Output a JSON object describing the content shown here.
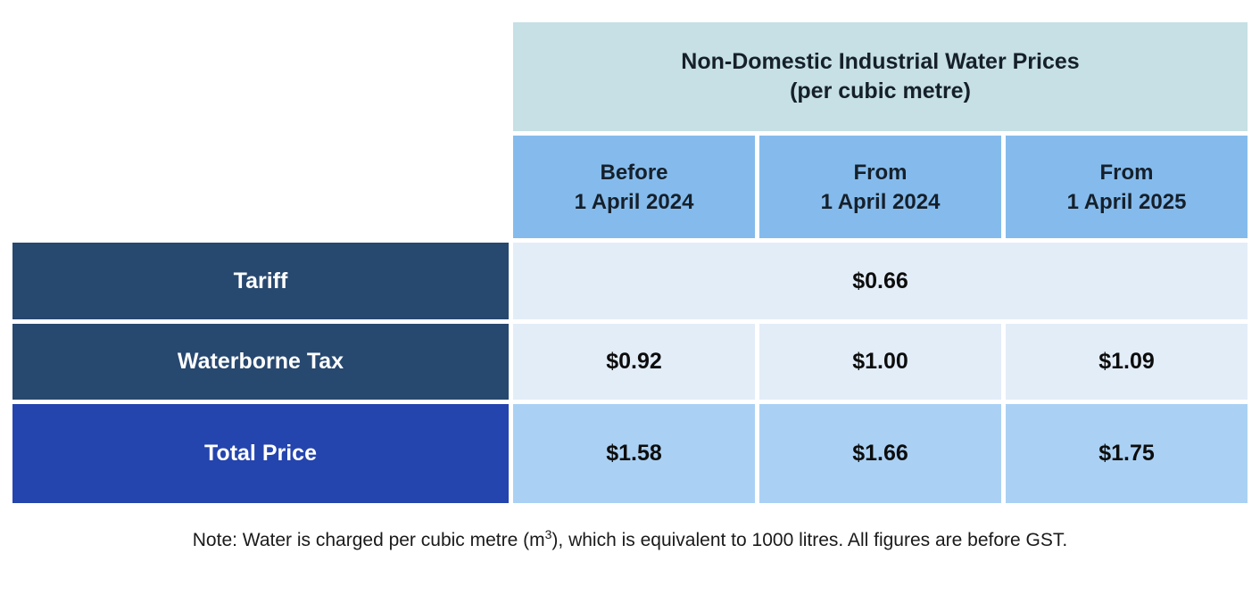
{
  "colors": {
    "header_teal": "#C6E0E5",
    "column_header_blue": "#85BBEC",
    "row_header_navy": "#27486F",
    "row_header_royal_blue": "#2444AE",
    "cell_light_blue": "#E3EDF8",
    "cell_medium_blue": "#AAD1F4",
    "text_dark": "#15202B",
    "text_white": "#FFFFFF",
    "background": "#FFFFFF"
  },
  "table": {
    "title_line1": "Non-Domestic Industrial Water Prices",
    "title_line2": "(per cubic metre)",
    "columns": [
      {
        "line1": "Before",
        "line2": "1 April 2024"
      },
      {
        "line1": "From",
        "line2": "1 April 2024"
      },
      {
        "line1": "From",
        "line2": "1 April 2025"
      }
    ],
    "rows": [
      {
        "label": "Tariff",
        "merged_value": "$0.66"
      },
      {
        "label": "Waterborne Tax",
        "values": [
          "$0.92",
          "$1.00",
          "$1.09"
        ]
      },
      {
        "label": "Total Price",
        "values": [
          "$1.58",
          "$1.66",
          "$1.75"
        ]
      }
    ]
  },
  "note": {
    "prefix": "Note: Water is charged per cubic metre (m",
    "superscript": "3",
    "suffix": "), which is equivalent to 1000 litres. All figures are before GST."
  },
  "chart_data": {
    "type": "table",
    "title": "Non-Domestic Industrial Water Prices (per cubic metre)",
    "columns": [
      "Before 1 April 2024",
      "From 1 April 2024",
      "From 1 April 2025"
    ],
    "rows": [
      {
        "label": "Tariff",
        "values": [
          "$0.66",
          "$0.66",
          "$0.66"
        ],
        "merged_across_columns": true
      },
      {
        "label": "Waterborne Tax",
        "values": [
          "$0.92",
          "$1.00",
          "$1.09"
        ],
        "merged_across_columns": false
      },
      {
        "label": "Total Price",
        "values": [
          "$1.58",
          "$1.66",
          "$1.75"
        ],
        "merged_across_columns": false
      }
    ],
    "note": "Note: Water is charged per cubic metre (m³), which is equivalent to 1000 litres. All figures are before GST.",
    "legend_position": "none",
    "grid": false
  }
}
